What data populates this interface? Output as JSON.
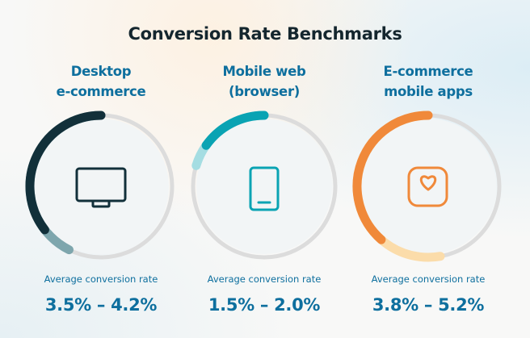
{
  "title": "Conversion Rate Benchmarks",
  "chart_data": {
    "type": "gauge",
    "title": "Conversion Rate Benchmarks",
    "unit": "%",
    "series": [
      {
        "name_lines": [
          "Desktop",
          "e-commerce"
        ],
        "icon": "desktop-monitor-icon",
        "low": 3.5,
        "high": 4.2,
        "label": "Average conversion rate",
        "value_text": "3.5% – 4.2%",
        "color": "#12303a",
        "light_color": "#7ea6ad"
      },
      {
        "name_lines": [
          "Mobile web",
          "(browser)"
        ],
        "icon": "smartphone-icon",
        "low": 1.5,
        "high": 2.0,
        "label": "Average conversion rate",
        "value_text": "1.5% – 2.0%",
        "color": "#0aa3b3",
        "light_color": "#a5dde2"
      },
      {
        "name_lines": [
          "E-commerce",
          "mobile apps"
        ],
        "icon": "heart-app-icon",
        "low": 3.8,
        "high": 5.2,
        "label": "Average conversion rate",
        "value_text": "3.8% – 5.2%",
        "color": "#f0893a",
        "light_color": "#fbdcaa"
      }
    ],
    "track_color": "#dcdcdc"
  }
}
